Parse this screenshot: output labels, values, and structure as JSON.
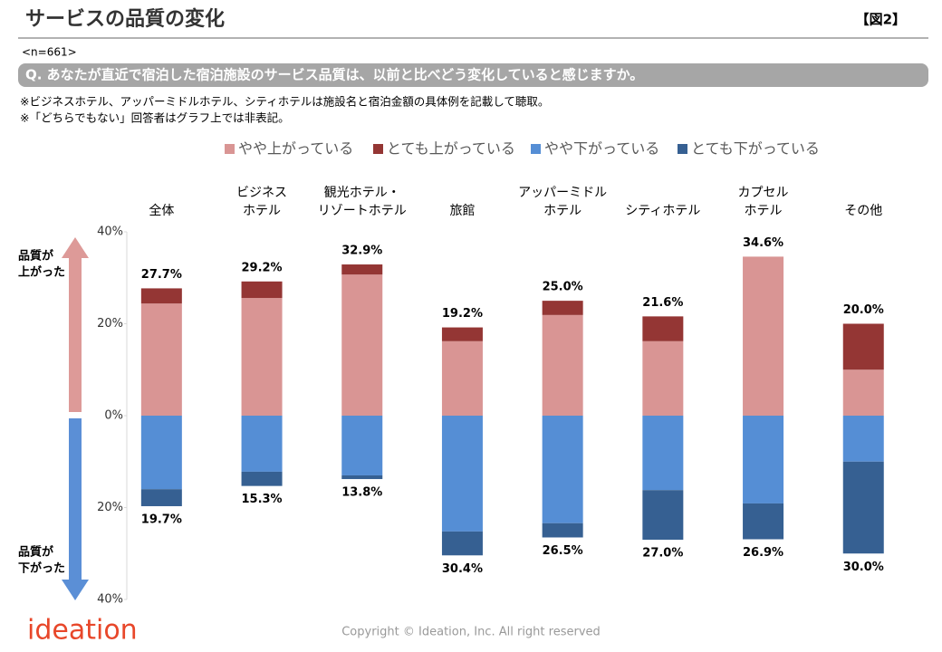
{
  "header": {
    "title": "サービスの品質の変化",
    "figure": "【図2】",
    "sample": "<n=661>",
    "question": "Q. あなたが直近で宿泊した宿泊施設のサービス品質は、以前と比べどう変化していると感じますか。",
    "notes": [
      "※ビジネスホテル、アッパーミドルホテル、シティホテルは施設名と宿泊金額の具体例を記載して聴取。",
      "※「どちらでもない」回答者はグラフ上では非表記。"
    ]
  },
  "chart_data": {
    "type": "bar",
    "stacked": true,
    "categories": [
      [
        "全体"
      ],
      [
        "ビジネス",
        "ホテル"
      ],
      [
        "観光ホテル・",
        "リゾートホテル"
      ],
      [
        "旅館"
      ],
      [
        "アッパーミドル",
        "ホテル"
      ],
      [
        "シティホテル"
      ],
      [
        "カプセル",
        "ホテル"
      ],
      [
        "その他"
      ]
    ],
    "series": [
      {
        "name": "やや上がっている",
        "color": "#d99594",
        "values": [
          24.4,
          25.6,
          30.7,
          16.2,
          21.9,
          16.2,
          34.6,
          10.0
        ]
      },
      {
        "name": "とても上がっている",
        "color": "#943634",
        "values": [
          3.3,
          3.6,
          2.2,
          3.0,
          3.1,
          5.4,
          0,
          10.0
        ]
      },
      {
        "name": "やや下がっている",
        "color": "#558ed5",
        "values": [
          -16.0,
          -12.2,
          -13.0,
          -25.2,
          -23.4,
          -16.2,
          -19.1,
          -10.0
        ]
      },
      {
        "name": "とても下がっている",
        "color": "#366092",
        "values": [
          -3.7,
          -3.1,
          -0.8,
          -5.2,
          -3.1,
          -10.8,
          -7.8,
          -20.0
        ]
      }
    ],
    "total_labels_up": [
      "27.7%",
      "29.2%",
      "32.9%",
      "19.2%",
      "25.0%",
      "21.6%",
      "34.6%",
      "20.0%"
    ],
    "total_labels_down": [
      "19.7%",
      "15.3%",
      "13.8%",
      "30.4%",
      "26.5%",
      "27.0%",
      "26.9%",
      "30.0%"
    ],
    "ylim": [
      -40,
      40
    ],
    "yticks": [
      {
        "value": 40,
        "label": "40%"
      },
      {
        "value": 20,
        "label": "20%"
      },
      {
        "value": 0,
        "label": "0%"
      },
      {
        "value": -20,
        "label": "20%"
      },
      {
        "value": -40,
        "label": "40%"
      }
    ],
    "up_label": [
      "品質が",
      "上がった"
    ],
    "down_label": [
      "品質が",
      "下がった"
    ]
  },
  "footer": {
    "logo": "ideation",
    "copyright": "Copyright © Ideation, Inc. All right reserved"
  }
}
